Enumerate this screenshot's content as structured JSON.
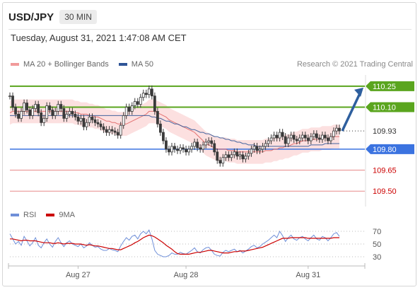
{
  "header": {
    "symbol": "USD/JPY",
    "timeframe": "30 MIN"
  },
  "timestamp": "Tuesday, August 31, 2021 1:47:08 AM CET",
  "legend": {
    "ma_bb": "MA 20 + Bollinger Bands",
    "ma50": "MA 50",
    "ma_bb_color": "#f19a9a",
    "ma50_color": "#2f5597"
  },
  "credit": "Research © 2021 Trading Central",
  "rsi_legend": {
    "rsi": "RSI",
    "ma9": "9MA",
    "rsi_color": "#6f8fd8",
    "ma9_color": "#cc0000"
  },
  "colors": {
    "resistance": "#5aa51e",
    "current": "#333333",
    "pivot": "#3b73e0",
    "support": "#e88a8a",
    "support_text": "#cc0000",
    "candle": "#3a3a3a",
    "bollinger": "#fbdada",
    "arrow": "#2e5f9e"
  },
  "chart_data": {
    "type": "candlestick",
    "price_range": [
      109.39,
      110.33
    ],
    "price_levels": [
      {
        "value": 110.25,
        "label": "110.25",
        "role": "resistance"
      },
      {
        "value": 110.1,
        "label": "110.10",
        "role": "resistance"
      },
      {
        "value": 109.93,
        "label": "109.93",
        "role": "current"
      },
      {
        "value": 109.8,
        "label": "109.80",
        "role": "pivot"
      },
      {
        "value": 109.65,
        "label": "109.65",
        "role": "support"
      },
      {
        "value": 109.5,
        "label": "109.50",
        "role": "support"
      }
    ],
    "x_labels": [
      "Aug 27",
      "Aug 28",
      "Aug 31"
    ],
    "close": [
      110.18,
      110.1,
      110.05,
      110.02,
      110.07,
      110.13,
      110.08,
      110.04,
      110.09,
      110.12,
      110.06,
      109.99,
      110.02,
      110.11,
      110.08,
      110.04,
      110.07,
      110.12,
      110.09,
      110.02,
      110.05,
      110.07,
      110.05,
      110.03,
      110.0,
      110.02,
      109.96,
      109.99,
      110.03,
      110.01,
      109.99,
      109.98,
      109.96,
      109.94,
      109.92,
      109.94,
      109.93,
      109.92,
      109.9,
      109.97,
      110.04,
      110.1,
      110.07,
      110.11,
      110.14,
      110.12,
      110.17,
      110.2,
      110.19,
      110.23,
      110.18,
      110.07,
      109.98,
      109.92,
      109.86,
      109.8,
      109.78,
      109.82,
      109.8,
      109.79,
      109.81,
      109.8,
      109.78,
      109.8,
      109.82,
      109.85,
      109.81,
      109.8,
      109.83,
      109.85,
      109.86,
      109.84,
      109.78,
      109.72,
      109.7,
      109.74,
      109.76,
      109.74,
      109.76,
      109.78,
      109.75,
      109.76,
      109.73,
      109.75,
      109.77,
      109.8,
      109.82,
      109.79,
      109.8,
      109.82,
      109.84,
      109.86,
      109.88,
      109.9,
      109.88,
      109.92,
      109.89,
      109.84,
      109.88,
      109.9,
      109.87,
      109.86,
      109.88,
      109.9,
      109.88,
      109.86,
      109.89,
      109.91,
      109.88,
      109.87,
      109.9,
      109.88,
      109.86,
      109.89,
      109.93,
      109.95,
      109.93
    ],
    "ma20": [
      110.06,
      110.07,
      110.07,
      110.07,
      110.07,
      110.07,
      110.07,
      110.07,
      110.07,
      110.07,
      110.07,
      110.07,
      110.07,
      110.07,
      110.07,
      110.07,
      110.07,
      110.07,
      110.07,
      110.07,
      110.07,
      110.07,
      110.07,
      110.06,
      110.06,
      110.05,
      110.05,
      110.05,
      110.04,
      110.04,
      110.03,
      110.03,
      110.02,
      110.01,
      110.0,
      110.0,
      109.99,
      109.99,
      109.98,
      109.98,
      109.98,
      109.98,
      109.99,
      110.0,
      110.01,
      110.02,
      110.03,
      110.04,
      110.05,
      110.07,
      110.07,
      110.07,
      110.06,
      110.05,
      110.04,
      110.03,
      110.01,
      110.0,
      109.99,
      109.98,
      109.97,
      109.96,
      109.95,
      109.94,
      109.93,
      109.92,
      109.9,
      109.88,
      109.86,
      109.84,
      109.83,
      109.82,
      109.81,
      109.8,
      109.8,
      109.8,
      109.8,
      109.79,
      109.79,
      109.79,
      109.78,
      109.78,
      109.78,
      109.78,
      109.78,
      109.78,
      109.78,
      109.78,
      109.78,
      109.78,
      109.79,
      109.79,
      109.79,
      109.8,
      109.8,
      109.81,
      109.81,
      109.82,
      109.82,
      109.83,
      109.84,
      109.84,
      109.85,
      109.86,
      109.86,
      109.86,
      109.87,
      109.87,
      109.87,
      109.87,
      109.88,
      109.88,
      109.88,
      109.88,
      109.89,
      109.89,
      109.89
    ],
    "ma50": [
      110.04,
      110.04,
      110.04,
      110.04,
      110.04,
      110.04,
      110.04,
      110.04,
      110.04,
      110.04,
      110.04,
      110.04,
      110.04,
      110.04,
      110.04,
      110.04,
      110.04,
      110.04,
      110.04,
      110.04,
      110.04,
      110.04,
      110.04,
      110.04,
      110.04,
      110.04,
      110.04,
      110.04,
      110.04,
      110.04,
      110.04,
      110.04,
      110.04,
      110.04,
      110.04,
      110.04,
      110.04,
      110.04,
      110.04,
      110.04,
      110.04,
      110.04,
      110.04,
      110.04,
      110.04,
      110.04,
      110.04,
      110.04,
      110.04,
      110.04,
      110.03,
      110.03,
      110.02,
      110.02,
      110.01,
      110.0,
      110.0,
      109.99,
      109.98,
      109.98,
      109.97,
      109.96,
      109.96,
      109.95,
      109.94,
      109.94,
      109.93,
      109.92,
      109.92,
      109.91,
      109.91,
      109.9,
      109.89,
      109.89,
      109.88,
      109.88,
      109.87,
      109.87,
      109.86,
      109.86,
      109.85,
      109.85,
      109.84,
      109.84,
      109.83,
      109.83,
      109.83,
      109.82,
      109.82,
      109.82,
      109.82,
      109.82,
      109.82,
      109.82,
      109.82,
      109.82,
      109.82,
      109.82,
      109.82,
      109.82,
      109.82,
      109.82,
      109.82,
      109.82,
      109.82,
      109.82,
      109.83,
      109.83,
      109.83,
      109.83,
      109.83,
      109.84,
      109.84,
      109.84,
      109.84,
      109.84,
      109.84
    ],
    "rsi": {
      "range": [
        20,
        80
      ],
      "ticks": [
        70,
        50,
        30
      ],
      "values": [
        66,
        58,
        50,
        54,
        48,
        62,
        55,
        47,
        52,
        60,
        48,
        44,
        52,
        58,
        50,
        45,
        54,
        60,
        52,
        46,
        52,
        55,
        50,
        48,
        46,
        50,
        44,
        47,
        52,
        48,
        45,
        46,
        42,
        40,
        40,
        43,
        41,
        40,
        38,
        47,
        54,
        60,
        56,
        62,
        64,
        58,
        66,
        70,
        66,
        72,
        58,
        40,
        34,
        32,
        30,
        30,
        32,
        36,
        34,
        34,
        37,
        35,
        34,
        37,
        40,
        44,
        38,
        36,
        41,
        44,
        45,
        40,
        34,
        32,
        31,
        37,
        40,
        38,
        40,
        42,
        38,
        40,
        36,
        39,
        42,
        46,
        48,
        44,
        46,
        50,
        53,
        56,
        60,
        64,
        60,
        70,
        63,
        54,
        60,
        64,
        58,
        56,
        60,
        62,
        58,
        55,
        60,
        64,
        58,
        56,
        62,
        60,
        55,
        60,
        66,
        68,
        62
      ],
      "ma9": [
        58,
        58,
        57,
        56,
        55,
        56,
        56,
        55,
        55,
        55,
        54,
        53,
        52,
        52,
        52,
        51,
        51,
        52,
        51,
        50,
        51,
        51,
        51,
        50,
        50,
        50,
        49,
        48,
        49,
        48,
        47,
        47,
        46,
        45,
        44,
        43,
        43,
        42,
        41,
        41,
        43,
        45,
        47,
        49,
        52,
        54,
        57,
        60,
        62,
        64,
        63,
        61,
        58,
        55,
        52,
        48,
        45,
        42,
        38,
        35,
        34,
        34,
        34,
        34,
        35,
        36,
        37,
        37,
        38,
        39,
        40,
        40,
        39,
        38,
        37,
        36,
        36,
        36,
        37,
        38,
        38,
        39,
        39,
        39,
        40,
        41,
        42,
        43,
        44,
        45,
        47,
        49,
        51,
        53,
        55,
        57,
        59,
        59,
        59,
        60,
        60,
        60,
        60,
        60,
        60,
        59,
        59,
        59,
        59,
        59,
        59,
        59,
        59,
        59,
        60,
        60,
        60
      ]
    }
  }
}
